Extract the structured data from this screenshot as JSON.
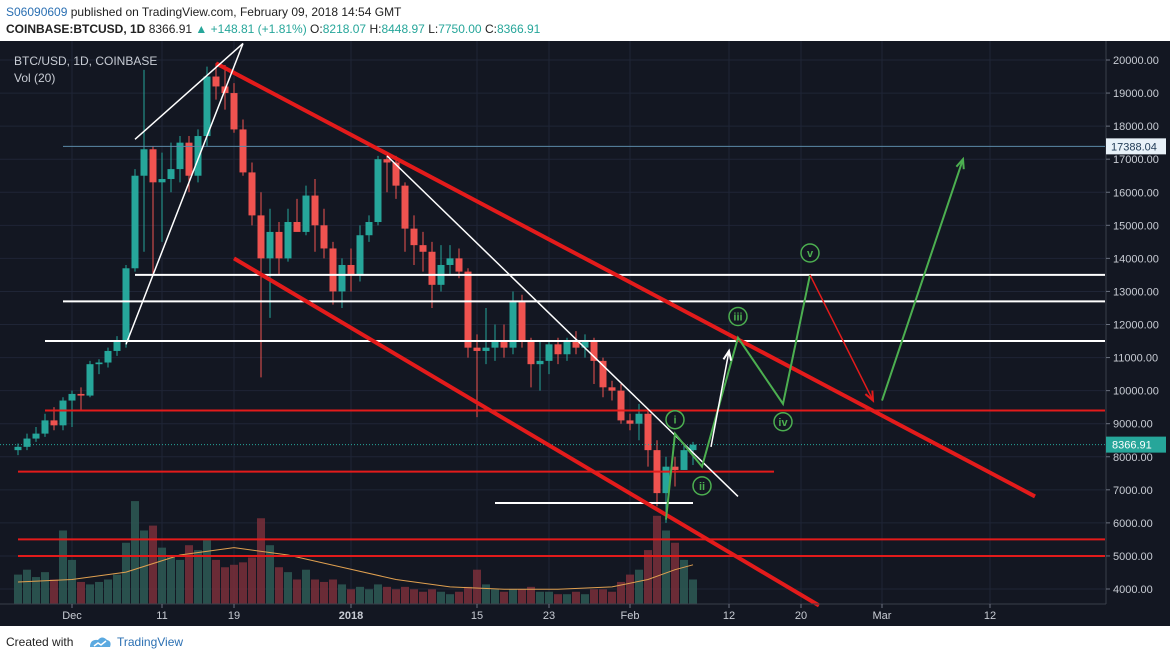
{
  "header": {
    "user": "S06090609",
    "published_text": "published on TradingView.com, February 09, 2018 14:54 GMT",
    "symbol": "COINBASE:BTCUSD, 1D",
    "last": "8366.91",
    "change": "▲ +148.81 (+1.81%)",
    "o_label": "O:",
    "o_value": "8218.07",
    "h_label": "H:",
    "h_value": "8448.97",
    "l_label": "L:",
    "l_value": "7750.00",
    "c_label": "C:",
    "c_value": "8366.91"
  },
  "chart_title": "BTC/USD, 1D, COINBASE",
  "volume_label": "Vol (20)",
  "footer": {
    "created": "Created with",
    "brand": "TradingView"
  },
  "colors": {
    "background": "#131722",
    "up_candle": "#26a69a",
    "down_candle": "#ef5350",
    "trendline_red": "#e31b1b",
    "wave_green": "#4caf50",
    "white": "#ffffff",
    "price_box": "#26a69a"
  },
  "chart_data": {
    "type": "candlestick",
    "title": "BTC/USD, 1D, COINBASE",
    "price_ticks": [
      4000,
      5000,
      6000,
      7000,
      8000,
      9000,
      10000,
      11000,
      12000,
      13000,
      14000,
      15000,
      16000,
      17000,
      18000,
      19000,
      20000
    ],
    "tick_labels": [
      "4000.00",
      "5000.00",
      "6000.00",
      "7000.00",
      "8000.00",
      "9000.00",
      "10000.00",
      "11000.00",
      "12000.00",
      "13000.00",
      "14000.00",
      "15000.00",
      "16000.00",
      "17000.00",
      "18000.00",
      "19000.00",
      "20000.00"
    ],
    "ylim": [
      3500,
      20500
    ],
    "x_ticks": [
      "Dec",
      "11",
      "19",
      "2018",
      "15",
      "23",
      "Feb",
      "12",
      "20",
      "Mar",
      "12"
    ],
    "x_tick_days": [
      0,
      10,
      18,
      31,
      45,
      53,
      62,
      73,
      81,
      90,
      102
    ],
    "xlim": [
      -6,
      107
    ],
    "last_price": 8366.91,
    "last_price_label": "8366.91",
    "marked_level": 17388.04,
    "marked_level_label": "17388.04",
    "volume": {
      "name": "Vol (20)"
    },
    "candles": [
      {
        "day": -6,
        "o": 8200,
        "h": 8400,
        "l": 8050,
        "c": 8300
      },
      {
        "day": -5,
        "o": 8300,
        "h": 8700,
        "l": 8200,
        "c": 8550
      },
      {
        "day": -4,
        "o": 8550,
        "h": 8900,
        "l": 8450,
        "c": 8700
      },
      {
        "day": -3,
        "o": 8700,
        "h": 9300,
        "l": 8600,
        "c": 9100
      },
      {
        "day": -2,
        "o": 9100,
        "h": 9500,
        "l": 8800,
        "c": 8950
      },
      {
        "day": -1,
        "o": 8950,
        "h": 9800,
        "l": 8800,
        "c": 9700
      },
      {
        "day": 0,
        "o": 9700,
        "h": 10000,
        "l": 8900,
        "c": 9900
      },
      {
        "day": 1,
        "o": 9900,
        "h": 10100,
        "l": 9400,
        "c": 9850
      },
      {
        "day": 2,
        "o": 9850,
        "h": 10900,
        "l": 9800,
        "c": 10800
      },
      {
        "day": 3,
        "o": 10800,
        "h": 10950,
        "l": 10500,
        "c": 10850
      },
      {
        "day": 4,
        "o": 10850,
        "h": 11300,
        "l": 10700,
        "c": 11200
      },
      {
        "day": 5,
        "o": 11200,
        "h": 11650,
        "l": 11050,
        "c": 11500
      },
      {
        "day": 6,
        "o": 11500,
        "h": 13800,
        "l": 11300,
        "c": 13700
      },
      {
        "day": 7,
        "o": 13700,
        "h": 16700,
        "l": 13600,
        "c": 16500
      },
      {
        "day": 8,
        "o": 16500,
        "h": 19700,
        "l": 14200,
        "c": 17300
      },
      {
        "day": 9,
        "o": 17300,
        "h": 17400,
        "l": 13500,
        "c": 16300
      },
      {
        "day": 10,
        "o": 16300,
        "h": 17200,
        "l": 14500,
        "c": 16400
      },
      {
        "day": 11,
        "o": 16400,
        "h": 17500,
        "l": 16000,
        "c": 16700
      },
      {
        "day": 12,
        "o": 16700,
        "h": 17700,
        "l": 16300,
        "c": 17500
      },
      {
        "day": 13,
        "o": 17500,
        "h": 17700,
        "l": 16000,
        "c": 16500
      },
      {
        "day": 14,
        "o": 16500,
        "h": 17900,
        "l": 16300,
        "c": 17700
      },
      {
        "day": 15,
        "o": 17700,
        "h": 19800,
        "l": 17400,
        "c": 19500
      },
      {
        "day": 16,
        "o": 19500,
        "h": 19900,
        "l": 18800,
        "c": 19200
      },
      {
        "day": 17,
        "o": 19200,
        "h": 19850,
        "l": 18500,
        "c": 19000
      },
      {
        "day": 18,
        "o": 19000,
        "h": 19300,
        "l": 17800,
        "c": 17900
      },
      {
        "day": 19,
        "o": 17900,
        "h": 18200,
        "l": 16500,
        "c": 16600
      },
      {
        "day": 20,
        "o": 16600,
        "h": 16900,
        "l": 15000,
        "c": 15300
      },
      {
        "day": 21,
        "o": 15300,
        "h": 16000,
        "l": 10400,
        "c": 14000
      },
      {
        "day": 22,
        "o": 14000,
        "h": 15500,
        "l": 12200,
        "c": 14800
      },
      {
        "day": 23,
        "o": 14800,
        "h": 15100,
        "l": 13500,
        "c": 14000
      },
      {
        "day": 24,
        "o": 14000,
        "h": 15500,
        "l": 13900,
        "c": 15100
      },
      {
        "day": 25,
        "o": 15100,
        "h": 15800,
        "l": 14900,
        "c": 14800
      },
      {
        "day": 26,
        "o": 14800,
        "h": 16200,
        "l": 14700,
        "c": 15900
      },
      {
        "day": 27,
        "o": 15900,
        "h": 16400,
        "l": 14200,
        "c": 15000
      },
      {
        "day": 28,
        "o": 15000,
        "h": 15500,
        "l": 14000,
        "c": 14300
      },
      {
        "day": 29,
        "o": 14300,
        "h": 14500,
        "l": 12600,
        "c": 13000
      },
      {
        "day": 30,
        "o": 13000,
        "h": 14000,
        "l": 12500,
        "c": 13800
      },
      {
        "day": 31,
        "o": 13800,
        "h": 14300,
        "l": 13000,
        "c": 13500
      },
      {
        "day": 32,
        "o": 13500,
        "h": 15000,
        "l": 13300,
        "c": 14700
      },
      {
        "day": 33,
        "o": 14700,
        "h": 15300,
        "l": 14500,
        "c": 15100
      },
      {
        "day": 34,
        "o": 15100,
        "h": 17100,
        "l": 15000,
        "c": 17000
      },
      {
        "day": 35,
        "o": 17000,
        "h": 17200,
        "l": 16000,
        "c": 16900
      },
      {
        "day": 36,
        "o": 16900,
        "h": 17100,
        "l": 15800,
        "c": 16200
      },
      {
        "day": 37,
        "o": 16200,
        "h": 16300,
        "l": 14200,
        "c": 14900
      },
      {
        "day": 38,
        "o": 14900,
        "h": 15300,
        "l": 13800,
        "c": 14400
      },
      {
        "day": 39,
        "o": 14400,
        "h": 14800,
        "l": 13600,
        "c": 14200
      },
      {
        "day": 40,
        "o": 14200,
        "h": 14500,
        "l": 12500,
        "c": 13200
      },
      {
        "day": 41,
        "o": 13200,
        "h": 14400,
        "l": 13000,
        "c": 13800
      },
      {
        "day": 42,
        "o": 13800,
        "h": 14400,
        "l": 13500,
        "c": 14000
      },
      {
        "day": 43,
        "o": 14000,
        "h": 14300,
        "l": 13400,
        "c": 13600
      },
      {
        "day": 44,
        "o": 13600,
        "h": 13700,
        "l": 11000,
        "c": 11300
      },
      {
        "day": 45,
        "o": 11300,
        "h": 11700,
        "l": 9200,
        "c": 11200
      },
      {
        "day": 46,
        "o": 11200,
        "h": 12500,
        "l": 10800,
        "c": 11300
      },
      {
        "day": 47,
        "o": 11300,
        "h": 12000,
        "l": 10900,
        "c": 11500
      },
      {
        "day": 48,
        "o": 11500,
        "h": 12000,
        "l": 11000,
        "c": 11300
      },
      {
        "day": 49,
        "o": 11300,
        "h": 13000,
        "l": 11100,
        "c": 12700
      },
      {
        "day": 50,
        "o": 12700,
        "h": 12900,
        "l": 11300,
        "c": 11500
      },
      {
        "day": 51,
        "o": 11500,
        "h": 11600,
        "l": 10100,
        "c": 10800
      },
      {
        "day": 52,
        "o": 10800,
        "h": 11500,
        "l": 10000,
        "c": 10900
      },
      {
        "day": 53,
        "o": 10900,
        "h": 11500,
        "l": 10500,
        "c": 11400
      },
      {
        "day": 54,
        "o": 11400,
        "h": 11600,
        "l": 10800,
        "c": 11100
      },
      {
        "day": 55,
        "o": 11100,
        "h": 11600,
        "l": 10900,
        "c": 11500
      },
      {
        "day": 56,
        "o": 11500,
        "h": 11800,
        "l": 11100,
        "c": 11300
      },
      {
        "day": 57,
        "o": 11300,
        "h": 11700,
        "l": 11000,
        "c": 11500
      },
      {
        "day": 58,
        "o": 11500,
        "h": 11600,
        "l": 10200,
        "c": 10900
      },
      {
        "day": 59,
        "o": 10900,
        "h": 11000,
        "l": 9800,
        "c": 10100
      },
      {
        "day": 60,
        "o": 10100,
        "h": 10300,
        "l": 9700,
        "c": 10000
      },
      {
        "day": 61,
        "o": 10000,
        "h": 10200,
        "l": 9000,
        "c": 9100
      },
      {
        "day": 62,
        "o": 9100,
        "h": 9300,
        "l": 8800,
        "c": 9000
      },
      {
        "day": 63,
        "o": 9000,
        "h": 9600,
        "l": 8500,
        "c": 9300
      },
      {
        "day": 64,
        "o": 9300,
        "h": 9400,
        "l": 7700,
        "c": 8200
      },
      {
        "day": 65,
        "o": 8200,
        "h": 8500,
        "l": 6500,
        "c": 6900
      },
      {
        "day": 66,
        "o": 6900,
        "h": 8000,
        "l": 6000,
        "c": 7700
      },
      {
        "day": 67,
        "o": 7700,
        "h": 8000,
        "l": 7100,
        "c": 7600
      },
      {
        "day": 68,
        "o": 7600,
        "h": 8400,
        "l": 7600,
        "c": 8200
      },
      {
        "day": 69,
        "o": 8200,
        "h": 8449,
        "l": 7750,
        "c": 8367
      }
    ],
    "volumes": [
      {
        "day": -6,
        "v": 12
      },
      {
        "day": -5,
        "v": 14
      },
      {
        "day": -4,
        "v": 11
      },
      {
        "day": -3,
        "v": 13
      },
      {
        "day": -2,
        "v": 10
      },
      {
        "day": -1,
        "v": 30
      },
      {
        "day": 0,
        "v": 18
      },
      {
        "day": 1,
        "v": 9
      },
      {
        "day": 2,
        "v": 8
      },
      {
        "day": 3,
        "v": 9
      },
      {
        "day": 4,
        "v": 10
      },
      {
        "day": 5,
        "v": 12
      },
      {
        "day": 6,
        "v": 25
      },
      {
        "day": 7,
        "v": 42
      },
      {
        "day": 8,
        "v": 30
      },
      {
        "day": 9,
        "v": 32
      },
      {
        "day": 10,
        "v": 23
      },
      {
        "day": 11,
        "v": 20
      },
      {
        "day": 12,
        "v": 18
      },
      {
        "day": 13,
        "v": 24
      },
      {
        "day": 14,
        "v": 22
      },
      {
        "day": 15,
        "v": 26
      },
      {
        "day": 16,
        "v": 18
      },
      {
        "day": 17,
        "v": 15
      },
      {
        "day": 18,
        "v": 16
      },
      {
        "day": 19,
        "v": 17
      },
      {
        "day": 20,
        "v": 19
      },
      {
        "day": 21,
        "v": 35
      },
      {
        "day": 22,
        "v": 24
      },
      {
        "day": 23,
        "v": 15
      },
      {
        "day": 24,
        "v": 13
      },
      {
        "day": 25,
        "v": 10
      },
      {
        "day": 26,
        "v": 14
      },
      {
        "day": 27,
        "v": 10
      },
      {
        "day": 28,
        "v": 9
      },
      {
        "day": 29,
        "v": 10
      },
      {
        "day": 30,
        "v": 8
      },
      {
        "day": 31,
        "v": 6
      },
      {
        "day": 32,
        "v": 7
      },
      {
        "day": 33,
        "v": 6
      },
      {
        "day": 34,
        "v": 8
      },
      {
        "day": 35,
        "v": 7
      },
      {
        "day": 36,
        "v": 6
      },
      {
        "day": 37,
        "v": 7
      },
      {
        "day": 38,
        "v": 6
      },
      {
        "day": 39,
        "v": 5
      },
      {
        "day": 40,
        "v": 6
      },
      {
        "day": 41,
        "v": 5
      },
      {
        "day": 42,
        "v": 4
      },
      {
        "day": 43,
        "v": 5
      },
      {
        "day": 44,
        "v": 7
      },
      {
        "day": 45,
        "v": 14
      },
      {
        "day": 46,
        "v": 8
      },
      {
        "day": 47,
        "v": 6
      },
      {
        "day": 48,
        "v": 5
      },
      {
        "day": 49,
        "v": 6
      },
      {
        "day": 50,
        "v": 6
      },
      {
        "day": 51,
        "v": 7
      },
      {
        "day": 52,
        "v": 5
      },
      {
        "day": 53,
        "v": 5
      },
      {
        "day": 54,
        "v": 4
      },
      {
        "day": 55,
        "v": 4
      },
      {
        "day": 56,
        "v": 5
      },
      {
        "day": 57,
        "v": 4
      },
      {
        "day": 58,
        "v": 6
      },
      {
        "day": 59,
        "v": 6
      },
      {
        "day": 60,
        "v": 5
      },
      {
        "day": 61,
        "v": 9
      },
      {
        "day": 62,
        "v": 12
      },
      {
        "day": 63,
        "v": 14
      },
      {
        "day": 64,
        "v": 22
      },
      {
        "day": 65,
        "v": 36
      },
      {
        "day": 66,
        "v": 30
      },
      {
        "day": 67,
        "v": 25
      },
      {
        "day": 68,
        "v": 18
      },
      {
        "day": 69,
        "v": 10
      }
    ],
    "volume_ma": [
      {
        "day": -6,
        "v": 9
      },
      {
        "day": 0,
        "v": 10
      },
      {
        "day": 6,
        "v": 13
      },
      {
        "day": 12,
        "v": 20
      },
      {
        "day": 18,
        "v": 23
      },
      {
        "day": 24,
        "v": 20
      },
      {
        "day": 30,
        "v": 15
      },
      {
        "day": 36,
        "v": 10
      },
      {
        "day": 42,
        "v": 7
      },
      {
        "day": 48,
        "v": 6
      },
      {
        "day": 54,
        "v": 6
      },
      {
        "day": 60,
        "v": 7
      },
      {
        "day": 64,
        "v": 10
      },
      {
        "day": 67,
        "v": 14
      },
      {
        "day": 69,
        "v": 16
      }
    ],
    "horizontal_levels": [
      {
        "price": 13500,
        "color": "white",
        "from_day": 7
      },
      {
        "price": 12700,
        "color": "white",
        "from_day": -1
      },
      {
        "price": 11500,
        "color": "white",
        "from_day": -3
      },
      {
        "price": 9400,
        "color": "red",
        "from_day": -3
      },
      {
        "price": 7550,
        "color": "red",
        "from_day": -6,
        "to_day": 78
      },
      {
        "price": 5500,
        "color": "red",
        "from_day": -6
      },
      {
        "price": 5000,
        "color": "red",
        "from_day": -6
      },
      {
        "price": 6600,
        "color": "white",
        "from_day": 47,
        "to_day": 69
      }
    ],
    "trendlines": [
      {
        "color": "red",
        "from": {
          "day": 16,
          "price": 19900
        },
        "to": {
          "day": 107,
          "price": 6800
        }
      },
      {
        "color": "red",
        "from": {
          "day": 18,
          "price": 14000
        },
        "to": {
          "day": 83,
          "price": 3500
        }
      },
      {
        "color": "white",
        "from": {
          "day": 35,
          "price": 17100
        },
        "to": {
          "day": 74,
          "price": 6800
        }
      },
      {
        "color": "white",
        "from": {
          "day": 6,
          "price": 11400
        },
        "to": {
          "day": 19,
          "price": 20500
        }
      },
      {
        "color": "white",
        "from": {
          "day": 7,
          "price": 17600
        },
        "to": {
          "day": 19,
          "price": 20500
        }
      }
    ],
    "wave_labels": [
      "i",
      "ii",
      "iii",
      "iv",
      "v"
    ],
    "wave_path": [
      {
        "day": 66,
        "price": 6100
      },
      {
        "day": 67,
        "price": 8700
      },
      {
        "day": 70,
        "price": 7700
      },
      {
        "day": 74,
        "price": 11600
      },
      {
        "day": 79,
        "price": 9600
      },
      {
        "day": 82,
        "price": 13500
      }
    ],
    "projection_red": [
      {
        "day": 82,
        "price": 13500
      },
      {
        "day": 89,
        "price": 9700
      }
    ],
    "projection_green": [
      {
        "day": 90,
        "price": 9700
      },
      {
        "day": 99,
        "price": 17000
      }
    ],
    "projection_white": [
      {
        "day": 71,
        "price": 8300
      },
      {
        "day": 73,
        "price": 11200
      }
    ]
  }
}
